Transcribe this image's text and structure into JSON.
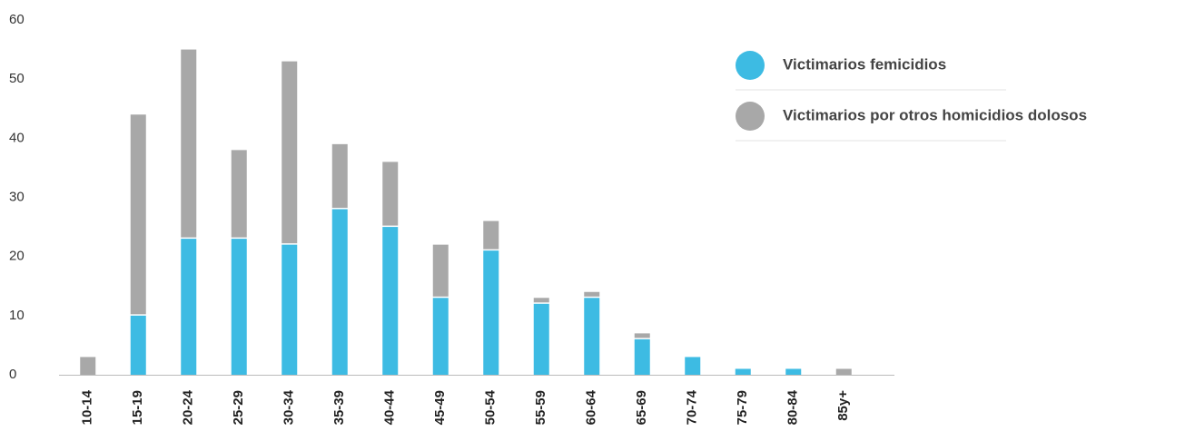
{
  "chart_data": {
    "type": "stacked_bar",
    "categories": [
      "10-14",
      "15-19",
      "20-24",
      "25-29",
      "30-34",
      "35-39",
      "40-44",
      "45-49",
      "50-54",
      "55-59",
      "60-64",
      "65-69",
      "70-74",
      "75-79",
      "80-84",
      "85y+"
    ],
    "series": [
      {
        "name": "Victimarios femicidios",
        "color": "#3dbbe3",
        "values": [
          0,
          10,
          23,
          23,
          22,
          28,
          25,
          13,
          21,
          12,
          13,
          6,
          3,
          1,
          1,
          0
        ]
      },
      {
        "name": "Victimarios por otros homicidios dolosos",
        "color": "#a8a8a8",
        "values": [
          3,
          34,
          32,
          15,
          31,
          11,
          11,
          9,
          5,
          1,
          1,
          1,
          0,
          0,
          0,
          1
        ]
      }
    ],
    "ylim": [
      0,
      60
    ],
    "yticks": [
      0,
      10,
      20,
      30,
      40,
      50,
      60
    ],
    "grid": false,
    "legend": "top-right"
  }
}
